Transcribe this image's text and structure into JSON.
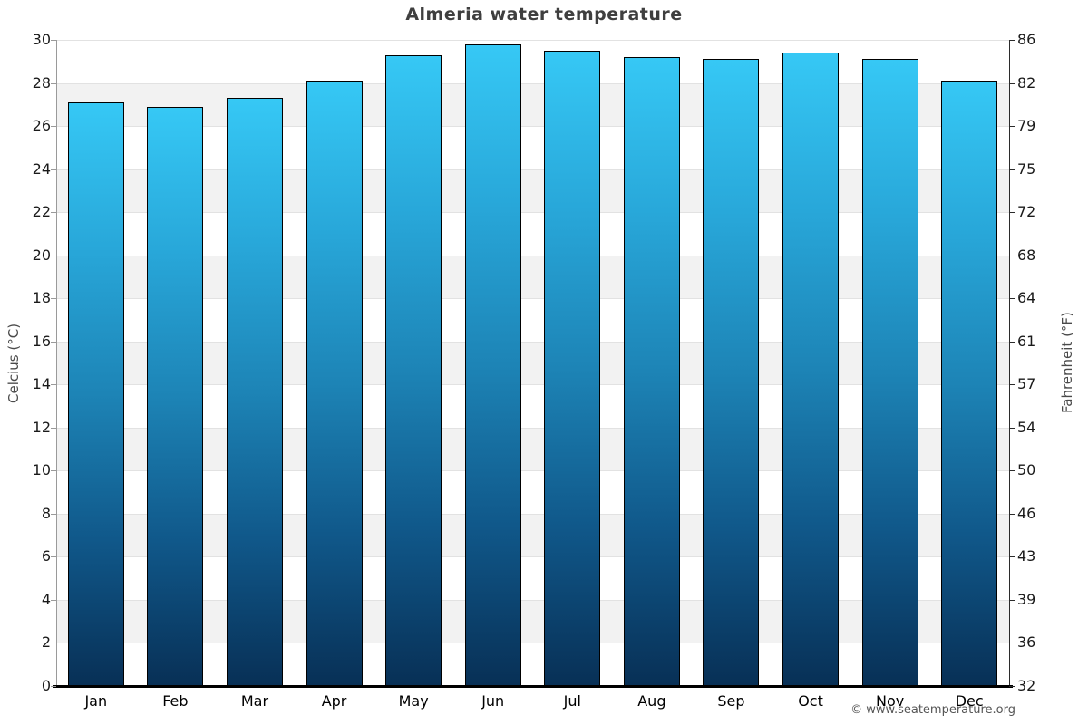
{
  "title": "Almeria water temperature",
  "footer": {
    "copyright": "© www.seatemperature.org"
  },
  "chart_data": {
    "type": "bar",
    "title": "Almeria water temperature",
    "categories": [
      "Jan",
      "Feb",
      "Mar",
      "Apr",
      "May",
      "Jun",
      "Jul",
      "Aug",
      "Sep",
      "Oct",
      "Nov",
      "Dec"
    ],
    "values": [
      27.1,
      26.9,
      27.3,
      28.1,
      29.3,
      29.8,
      29.5,
      29.2,
      29.1,
      29.4,
      29.1,
      28.1
    ],
    "unit": "°C",
    "ylabel_left": "Celcius (°C)",
    "ylabel_right": "Fahrenheit (°F)",
    "ylim": [
      0,
      30
    ],
    "ytick_step": 2,
    "yticks_left": [
      0,
      2,
      4,
      6,
      8,
      10,
      12,
      14,
      16,
      18,
      20,
      22,
      24,
      26,
      28,
      30
    ],
    "yticks_right_labels": [
      "32",
      "36",
      "39",
      "43",
      "46",
      "50",
      "54",
      "57",
      "61",
      "64",
      "68",
      "72",
      "75",
      "79",
      "82",
      "86"
    ],
    "grid": "horizontal alternating bands every 2°C",
    "legend": null,
    "colors": {
      "bar_gradient": [
        "#36c8f5",
        "#28a7d9",
        "#1d84b6",
        "#10588a",
        "#083056"
      ],
      "bar_border": "#000000",
      "band_alt": "#f2f2f2",
      "band_base": "#ffffff",
      "gridline": "#e2e2e2",
      "axis_left": "#9a9a9a",
      "axis_right": "#2b2b2b",
      "axis_bottom": "#000000",
      "title_color": "#3f3f3f"
    }
  }
}
